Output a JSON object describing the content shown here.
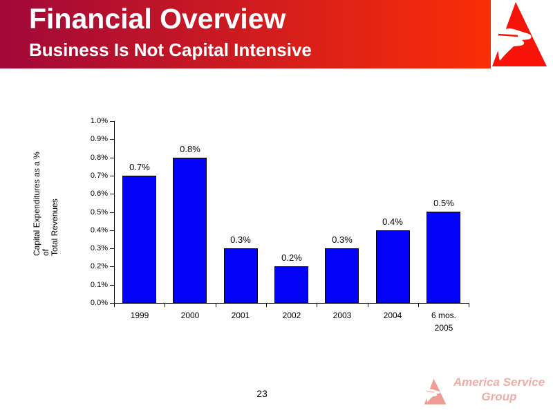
{
  "header": {
    "title": "Financial Overview",
    "subtitle": "Business Is Not Capital Intensive",
    "gradient_left": "#A10839",
    "gradient_right": "#FB2E06",
    "text_color": "#FFFFFF"
  },
  "header_logo": {
    "icon": "eagle-triangle-logo",
    "color": "#F7130A"
  },
  "chart_data": {
    "type": "bar",
    "categories": [
      [
        "1999"
      ],
      [
        "2000"
      ],
      [
        "2001"
      ],
      [
        "2002"
      ],
      [
        "2003"
      ],
      [
        "2004"
      ],
      [
        "6 mos.",
        "2005"
      ]
    ],
    "values": [
      0.7,
      0.8,
      0.3,
      0.2,
      0.3,
      0.4,
      0.5
    ],
    "bar_labels": [
      "0.7%",
      "0.8%",
      "0.3%",
      "0.2%",
      "0.3%",
      "0.4%",
      "0.5%"
    ],
    "title": "",
    "xlabel": "",
    "ylabel_lines": [
      "Capital Expenditures as a % of",
      "Total Revenues"
    ],
    "ylim": [
      0,
      1.0
    ],
    "ytick_step": 0.1,
    "ytick_labels": [
      "0.0%",
      "0.1%",
      "0.2%",
      "0.3%",
      "0.4%",
      "0.5%",
      "0.6%",
      "0.7%",
      "0.8%",
      "0.9%",
      "1.0%"
    ],
    "bar_color": "#0202F8",
    "bar_border_color": "#000000",
    "axis_color": "#000000",
    "grid": false,
    "legend": false
  },
  "footer": {
    "page_number": "23",
    "brand": {
      "line1": "America Service",
      "line2": "Group",
      "color": "#F2ACA6",
      "icon": "eagle-triangle-logo",
      "icon_color": "#EF9C94"
    }
  }
}
